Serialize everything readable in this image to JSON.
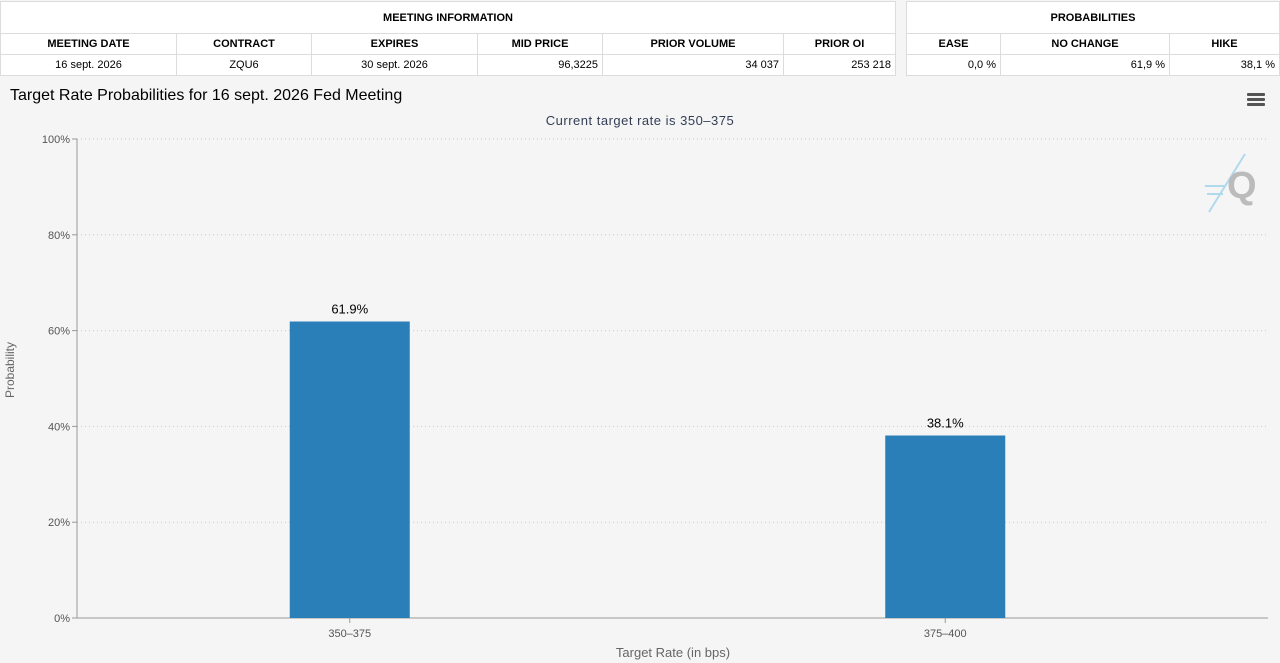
{
  "meeting_info": {
    "title": "MEETING INFORMATION",
    "headers": [
      "MEETING DATE",
      "CONTRACT",
      "EXPIRES",
      "MID PRICE",
      "PRIOR VOLUME",
      "PRIOR OI"
    ],
    "values": [
      "16 sept. 2026",
      "ZQU6",
      "30 sept. 2026",
      "96,3225",
      "34 037",
      "253 218"
    ]
  },
  "probabilities": {
    "title": "PROBABILITIES",
    "headers": [
      "EASE",
      "NO CHANGE",
      "HIKE"
    ],
    "values": [
      "0,0 %",
      "61,9 %",
      "38,1 %"
    ]
  },
  "chart": {
    "title": "Target Rate Probabilities for 16 sept. 2026 Fed Meeting",
    "subtitle": "Current target rate is 350–375",
    "menu_icon": "hamburger-menu-icon",
    "logo_icon": "q-logo-icon"
  },
  "chart_data": {
    "type": "bar",
    "categories": [
      "350–375",
      "375–400"
    ],
    "values": [
      61.9,
      38.1
    ],
    "data_labels": [
      "61.9%",
      "38.1%"
    ],
    "title": "Target Rate Probabilities for 16 sept. 2026 Fed Meeting",
    "subtitle": "Current target rate is 350–375",
    "xlabel": "Target Rate (in bps)",
    "ylabel": "Probability",
    "ylim": [
      0,
      100
    ],
    "yticks": [
      "0%",
      "20%",
      "40%",
      "60%",
      "80%",
      "100%"
    ],
    "grid": true,
    "bar_color": "#2b7fb8"
  }
}
